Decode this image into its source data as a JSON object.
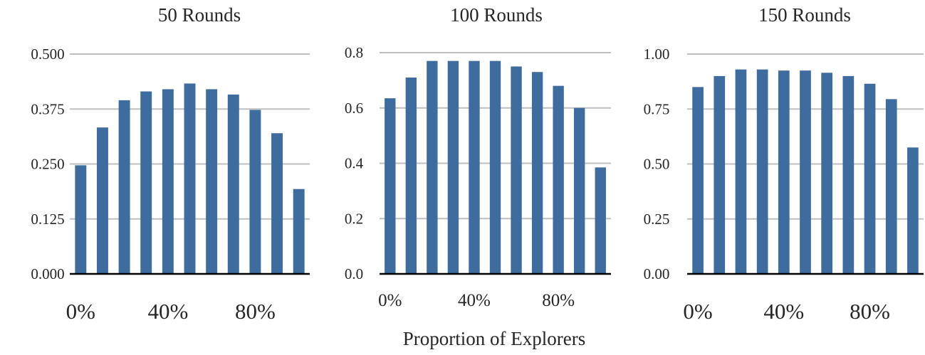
{
  "chart_data": [
    {
      "type": "bar",
      "title": "50 Rounds",
      "ylim": [
        0,
        0.5
      ],
      "yticks": [
        "0.000",
        "0.125",
        "0.250",
        "0.375",
        "0.500"
      ],
      "xticks": [
        "0%",
        "40%",
        "80%"
      ],
      "x": [
        "0%",
        "10%",
        "20%",
        "30%",
        "40%",
        "50%",
        "60%",
        "70%",
        "80%",
        "90%",
        "100%"
      ],
      "values": [
        0.247,
        0.333,
        0.395,
        0.415,
        0.42,
        0.433,
        0.42,
        0.408,
        0.373,
        0.32,
        0.193
      ],
      "color": "#3e6c9e",
      "grid": true
    },
    {
      "type": "bar",
      "title": "100 Rounds",
      "ylim": [
        0,
        0.8
      ],
      "yticks": [
        "0.0",
        "0.2",
        "0.4",
        "0.6",
        "0.8"
      ],
      "xticks": [
        "0%",
        "40%",
        "80%"
      ],
      "x": [
        "0%",
        "10%",
        "20%",
        "30%",
        "40%",
        "50%",
        "60%",
        "70%",
        "80%",
        "90%",
        "100%"
      ],
      "values": [
        0.635,
        0.71,
        0.77,
        0.77,
        0.77,
        0.77,
        0.75,
        0.73,
        0.68,
        0.6,
        0.385
      ],
      "color": "#3e6c9e",
      "grid": true
    },
    {
      "type": "bar",
      "title": "150 Rounds",
      "ylim": [
        0,
        1.0
      ],
      "yticks": [
        "0.00",
        "0.25",
        "0.50",
        "0.75",
        "1.00"
      ],
      "xticks": [
        "0%",
        "40%",
        "80%"
      ],
      "x": [
        "0%",
        "10%",
        "20%",
        "30%",
        "40%",
        "50%",
        "60%",
        "70%",
        "80%",
        "90%",
        "100%"
      ],
      "values": [
        0.85,
        0.9,
        0.93,
        0.93,
        0.925,
        0.925,
        0.915,
        0.9,
        0.865,
        0.795,
        0.575
      ],
      "color": "#3e6c9e",
      "grid": true
    }
  ],
  "shared_xlabel": "Proportion of Explorers"
}
